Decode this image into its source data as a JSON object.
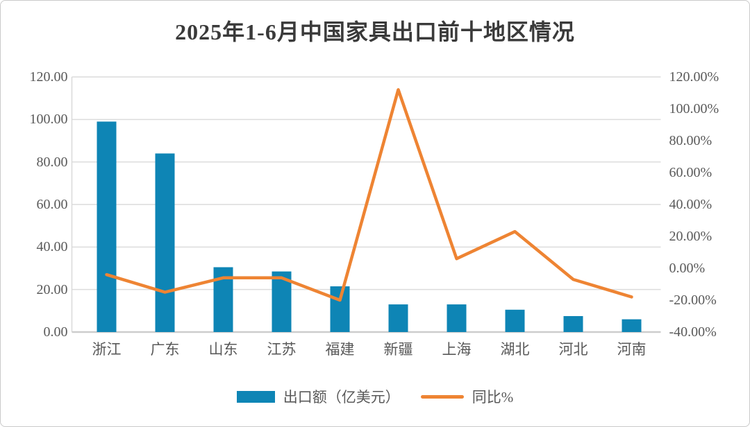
{
  "title": "2025年1-6月中国家具出口前十地区情况",
  "colors": {
    "bar": "#0e85b5",
    "line": "#ee8433",
    "grid": "#dcdcdc",
    "axis_line": "#d9d9d9",
    "baseline": "#cdcdcd",
    "tick_text": "#595959",
    "title_text": "#3a3a3a"
  },
  "legend": {
    "items": [
      {
        "label": "出口额（亿美元）",
        "marker": "bar"
      },
      {
        "label": "同比%",
        "marker": "line"
      }
    ]
  },
  "chart_data": {
    "type": "bar",
    "subtype": "combo-bar-line-dual-axis",
    "title": "2025年1-6月中国家具出口前十地区情况",
    "categories": [
      "浙江",
      "广东",
      "山东",
      "江苏",
      "福建",
      "新疆",
      "上海",
      "湖北",
      "河北",
      "河南"
    ],
    "series": [
      {
        "name": "出口额（亿美元）",
        "type": "bar",
        "axis": "left",
        "values": [
          99,
          84,
          30.5,
          28.5,
          21.5,
          13,
          13,
          10.5,
          7.5,
          6
        ]
      },
      {
        "name": "同比%",
        "type": "line",
        "axis": "right",
        "values": [
          -4,
          -15,
          -6,
          -6,
          -20,
          112,
          6,
          23,
          -7,
          -18
        ]
      }
    ],
    "left_axis": {
      "min": 0,
      "max": 120,
      "step": 20,
      "labels": [
        "120.00",
        "100.00",
        "80.00",
        "60.00",
        "40.00",
        "20.00",
        "0.00"
      ]
    },
    "right_axis": {
      "min": -40,
      "max": 120,
      "step": 20,
      "labels": [
        "120.00%",
        "100.00%",
        "80.00%",
        "60.00%",
        "40.00%",
        "20.00%",
        "0.00%",
        "-20.00%",
        "-40.00%"
      ]
    },
    "grid": "horizontal-on-left-axis-ticks",
    "legend_position": "bottom-center"
  }
}
